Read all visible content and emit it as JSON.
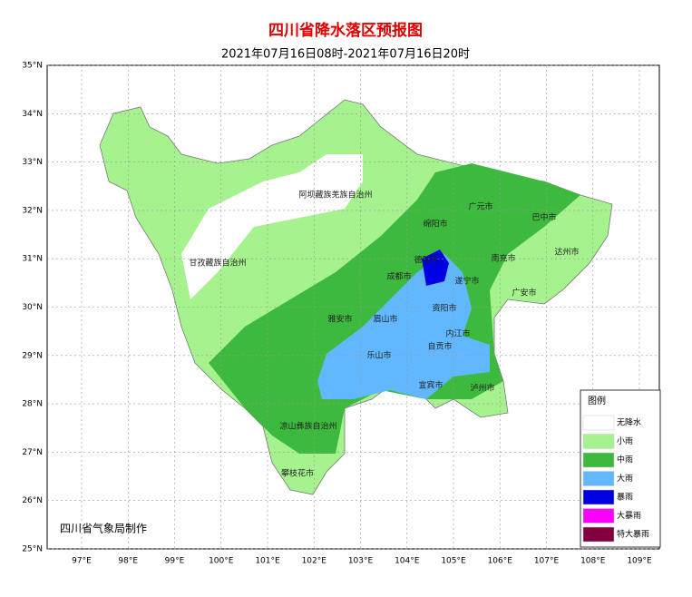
{
  "title": "四川省降水落区预报图",
  "subtitle": "2021年07月16日08时-2021年07月16日20时",
  "lat_ticks": [
    {
      "value": 35,
      "label": "35°N"
    },
    {
      "value": 34,
      "label": "34°N"
    },
    {
      "value": 33,
      "label": "33°N"
    },
    {
      "value": 32,
      "label": "32°N"
    },
    {
      "value": 31,
      "label": "31°N"
    },
    {
      "value": 30,
      "label": "30°N"
    },
    {
      "value": 29,
      "label": "29°N"
    },
    {
      "value": 28,
      "label": "28°N"
    },
    {
      "value": 27,
      "label": "27°N"
    },
    {
      "value": 26,
      "label": "26°N"
    },
    {
      "value": 25,
      "label": "25°N"
    }
  ],
  "lon_ticks": [
    {
      "value": 97,
      "label": "97°E"
    },
    {
      "value": 98,
      "label": "98°E"
    },
    {
      "value": 99,
      "label": "99°E"
    },
    {
      "value": 100,
      "label": "100°E"
    },
    {
      "value": 101,
      "label": "101°E"
    },
    {
      "value": 102,
      "label": "102°E"
    },
    {
      "value": 103,
      "label": "103°E"
    },
    {
      "value": 104,
      "label": "104°E"
    },
    {
      "value": 105,
      "label": "105°E"
    },
    {
      "value": 106,
      "label": "106°E"
    },
    {
      "value": 107,
      "label": "107°E"
    },
    {
      "value": 108,
      "label": "108°E"
    },
    {
      "value": 109,
      "label": "109°E"
    }
  ],
  "places": [
    "阿坝藏族羌族自治州",
    "甘孜藏族自治州",
    "广元市",
    "绵阳市",
    "巴中市",
    "达州市",
    "南充市",
    "德阳市",
    "成都市",
    "遂宁市",
    "广安市",
    "资阳市",
    "雅安市",
    "眉山市",
    "内江市",
    "自贡市",
    "乐山市",
    "宜宾市",
    "泸州市",
    "凉山彝族自治州",
    "攀枝花市"
  ],
  "legend": {
    "title": "图例",
    "items": [
      {
        "label": "无降水",
        "color": "#ffffff"
      },
      {
        "label": "小雨",
        "color": "#a6f28f"
      },
      {
        "label": "中雨",
        "color": "#3dba3d"
      },
      {
        "label": "大雨",
        "color": "#61b8ff"
      },
      {
        "label": "暴雨",
        "color": "#0000e1"
      },
      {
        "label": "大暴雨",
        "color": "#fa00fa"
      },
      {
        "label": "特大暴雨",
        "color": "#800040"
      }
    ]
  },
  "credit": "四川省气象局制作"
}
